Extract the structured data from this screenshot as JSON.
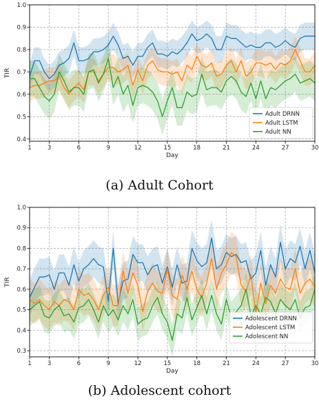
{
  "figures": [
    {
      "caption": "(a) Adult Cohort"
    },
    {
      "caption": "(b) Adolescent cohort"
    }
  ],
  "chart_data": [
    {
      "type": "line",
      "title": "",
      "xlabel": "Day",
      "ylabel": "TIR",
      "xlim": [
        1,
        30
      ],
      "ylim": [
        0.39,
        1.0
      ],
      "x_ticks": [
        1,
        3,
        6,
        9,
        12,
        15,
        18,
        21,
        24,
        27,
        30
      ],
      "y_ticks": [
        0.4,
        0.5,
        0.6,
        0.7,
        0.8,
        0.9,
        1.0
      ],
      "y_tick_labels": [
        "0.4",
        "0.5",
        "0.6",
        "0.7",
        "0.8",
        "0.9",
        "1.0"
      ],
      "grid": true,
      "grid_style": "dashed",
      "legend_position": "lower-right",
      "x": [
        1,
        1.5,
        2,
        2.5,
        3,
        3.5,
        4,
        4.5,
        5,
        5.5,
        6,
        6.5,
        7,
        7.5,
        8,
        8.5,
        9,
        9.5,
        10,
        10.5,
        11,
        11.5,
        12,
        12.5,
        13,
        13.5,
        14,
        14.5,
        15,
        15.5,
        16,
        16.5,
        17,
        17.5,
        18,
        18.5,
        19,
        19.5,
        20,
        20.5,
        21,
        21.5,
        22,
        22.5,
        23,
        23.5,
        24,
        24.5,
        25,
        25.5,
        26,
        26.5,
        27,
        27.5,
        28,
        28.5,
        29,
        29.5,
        30
      ],
      "series": [
        {
          "name": "Adult DRNN",
          "color": "#1f77b4",
          "values": [
            0.68,
            0.75,
            0.75,
            0.7,
            0.67,
            0.69,
            0.73,
            0.74,
            0.76,
            0.83,
            0.75,
            0.75,
            0.76,
            0.79,
            0.79,
            0.8,
            0.82,
            0.86,
            0.82,
            0.76,
            0.77,
            0.73,
            0.77,
            0.77,
            0.81,
            0.83,
            0.78,
            0.78,
            0.77,
            0.79,
            0.78,
            0.8,
            0.83,
            0.87,
            0.84,
            0.85,
            0.87,
            0.85,
            0.8,
            0.8,
            0.86,
            0.85,
            0.85,
            0.83,
            0.81,
            0.82,
            0.81,
            0.81,
            0.83,
            0.83,
            0.81,
            0.82,
            0.84,
            0.82,
            0.81,
            0.85,
            0.86,
            0.86,
            0.86
          ],
          "band": 0.06
        },
        {
          "name": "Adult LSTM",
          "color": "#ff7f0e",
          "values": [
            0.63,
            0.64,
            0.64,
            0.65,
            0.66,
            0.66,
            0.68,
            0.63,
            0.6,
            0.63,
            0.65,
            0.62,
            0.7,
            0.7,
            0.66,
            0.69,
            0.72,
            0.72,
            0.7,
            0.71,
            0.73,
            0.64,
            0.71,
            0.66,
            0.73,
            0.75,
            0.71,
            0.7,
            0.7,
            0.69,
            0.7,
            0.66,
            0.73,
            0.71,
            0.77,
            0.73,
            0.72,
            0.74,
            0.68,
            0.69,
            0.73,
            0.75,
            0.7,
            0.75,
            0.68,
            0.7,
            0.74,
            0.74,
            0.73,
            0.74,
            0.71,
            0.74,
            0.73,
            0.75,
            0.8,
            0.75,
            0.7,
            0.7,
            0.73
          ],
          "band": 0.06
        },
        {
          "name": "Adult NN",
          "color": "#2ca02c",
          "values": [
            0.67,
            0.67,
            0.63,
            0.59,
            0.57,
            0.6,
            0.7,
            0.66,
            0.61,
            0.63,
            0.63,
            0.6,
            0.7,
            0.71,
            0.65,
            0.69,
            0.76,
            0.63,
            0.68,
            0.6,
            0.64,
            0.55,
            0.63,
            0.64,
            0.63,
            0.61,
            0.57,
            0.5,
            0.57,
            0.63,
            0.54,
            0.54,
            0.61,
            0.59,
            0.6,
            0.69,
            0.62,
            0.63,
            0.63,
            0.61,
            0.66,
            0.68,
            0.66,
            0.61,
            0.59,
            0.65,
            0.58,
            0.66,
            0.58,
            0.63,
            0.62,
            0.64,
            0.66,
            0.67,
            0.69,
            0.65,
            0.66,
            0.67,
            0.65
          ],
          "band": 0.08
        }
      ]
    },
    {
      "type": "line",
      "title": "",
      "xlabel": "Day",
      "ylabel": "TIR",
      "xlim": [
        1,
        30
      ],
      "ylim": [
        0.27,
        1.0
      ],
      "x_ticks": [
        1,
        3,
        6,
        9,
        12,
        15,
        18,
        21,
        24,
        27,
        30
      ],
      "y_ticks": [
        0.3,
        0.4,
        0.5,
        0.6,
        0.7,
        0.8,
        0.9,
        1.0
      ],
      "y_tick_labels": [
        "0.3",
        "0.4",
        "0.5",
        "0.6",
        "0.7",
        "0.8",
        "0.9",
        "1.0"
      ],
      "grid": true,
      "grid_style": "dashed",
      "legend_position": "lower-right",
      "x": [
        1,
        1.5,
        2,
        2.5,
        3,
        3.5,
        4,
        4.5,
        5,
        5.5,
        6,
        6.5,
        7,
        7.5,
        8,
        8.5,
        9,
        9.5,
        10,
        10.5,
        11,
        11.5,
        12,
        12.5,
        13,
        13.5,
        14,
        14.5,
        15,
        15.5,
        16,
        16.5,
        17,
        17.5,
        18,
        18.5,
        19,
        19.5,
        20,
        20.5,
        21,
        21.5,
        22,
        22.5,
        23,
        23.5,
        24,
        24.5,
        25,
        25.5,
        26,
        26.5,
        27,
        27.5,
        28,
        28.5,
        29,
        29.5,
        30
      ],
      "series": [
        {
          "name": "Adolescent DRNN",
          "color": "#1f77b4",
          "values": [
            0.56,
            0.61,
            0.66,
            0.66,
            0.67,
            0.6,
            0.68,
            0.68,
            0.62,
            0.72,
            0.64,
            0.7,
            0.72,
            0.75,
            0.72,
            0.71,
            0.54,
            0.8,
            0.53,
            0.64,
            0.65,
            0.77,
            0.73,
            0.73,
            0.67,
            0.71,
            0.72,
            0.63,
            0.71,
            0.61,
            0.72,
            0.63,
            0.64,
            0.8,
            0.74,
            0.71,
            0.73,
            0.85,
            0.7,
            0.72,
            0.78,
            0.76,
            0.77,
            0.73,
            0.74,
            0.65,
            0.68,
            0.79,
            0.62,
            0.72,
            0.66,
            0.83,
            0.7,
            0.75,
            0.73,
            0.81,
            0.7,
            0.79,
            0.68
          ],
          "band": 0.09
        },
        {
          "name": "Adolescent LSTM",
          "color": "#ff7f0e",
          "values": [
            0.55,
            0.53,
            0.55,
            0.52,
            0.5,
            0.54,
            0.52,
            0.55,
            0.54,
            0.5,
            0.6,
            0.57,
            0.58,
            0.55,
            0.5,
            0.57,
            0.61,
            0.52,
            0.52,
            0.69,
            0.58,
            0.68,
            0.62,
            0.49,
            0.59,
            0.63,
            0.59,
            0.58,
            0.7,
            0.57,
            0.55,
            0.67,
            0.6,
            0.69,
            0.6,
            0.56,
            0.63,
            0.75,
            0.6,
            0.68,
            0.72,
            0.78,
            0.76,
            0.62,
            0.59,
            0.67,
            0.48,
            0.63,
            0.53,
            0.62,
            0.58,
            0.65,
            0.61,
            0.6,
            0.7,
            0.58,
            0.63,
            0.65,
            0.61
          ],
          "band": 0.1
        },
        {
          "name": "Adolescent NN",
          "color": "#2ca02c",
          "values": [
            0.5,
            0.52,
            0.54,
            0.47,
            0.46,
            0.5,
            0.52,
            0.47,
            0.48,
            0.44,
            0.51,
            0.52,
            0.55,
            0.5,
            0.44,
            0.52,
            0.47,
            0.5,
            0.45,
            0.52,
            0.48,
            0.55,
            0.43,
            0.45,
            0.46,
            0.52,
            0.56,
            0.48,
            0.44,
            0.35,
            0.48,
            0.46,
            0.56,
            0.45,
            0.51,
            0.57,
            0.48,
            0.57,
            0.48,
            0.43,
            0.55,
            0.46,
            0.49,
            0.52,
            0.6,
            0.47,
            0.52,
            0.48,
            0.56,
            0.54,
            0.48,
            0.55,
            0.52,
            0.5,
            0.55,
            0.46,
            0.51,
            0.52,
            0.6
          ],
          "band": 0.08
        }
      ]
    }
  ]
}
